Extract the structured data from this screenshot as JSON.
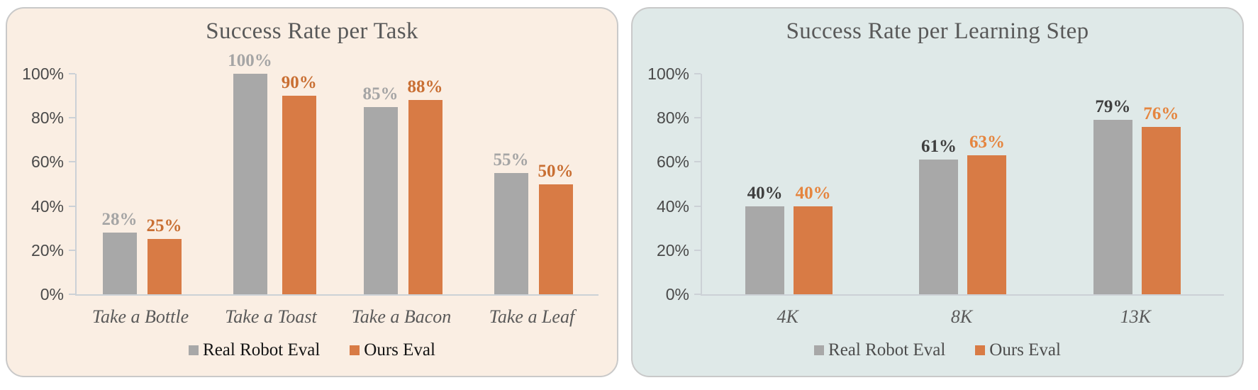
{
  "page": {
    "background": "#ffffff"
  },
  "chart_data": [
    {
      "type": "bar",
      "title": "Success Rate per Task",
      "title_color": "#595959",
      "panel_background": "#faeee3",
      "panel_border_color": "#c9c9c9",
      "axis_color": "#ccd1d6",
      "ytick_label_color": "#4a4a4a",
      "category_label_color": "#595959",
      "legend_text_color": "#141414",
      "categories": [
        "Take a Bottle",
        "Take a Toast",
        "Take a Bacon",
        "Take a Leaf"
      ],
      "series": [
        {
          "name": "Real Robot Eval",
          "color": "#a8a8a8",
          "label_color": "#a5a5a5",
          "values": [
            28,
            100,
            85,
            55
          ]
        },
        {
          "name": "Ours Eval",
          "color": "#d87b45",
          "label_color": "#c96f33",
          "values": [
            25,
            90,
            88,
            50
          ]
        }
      ],
      "value_suffix": "%",
      "yticks": [
        "0%",
        "20%",
        "40%",
        "60%",
        "80%",
        "100%"
      ],
      "ylim": [
        0,
        100
      ],
      "grid": false,
      "legend_position": "bottom"
    },
    {
      "type": "bar",
      "title": "Success Rate per Learning Step",
      "title_color": "#595959",
      "panel_background": "#dfe9e8",
      "panel_border_color": "#c9c9c9",
      "axis_color": "#ccd1d6",
      "ytick_label_color": "#4a4a4a",
      "category_label_color": "#595959",
      "legend_text_color": "#4d4d4d",
      "categories": [
        "4K",
        "8K",
        "13K"
      ],
      "series": [
        {
          "name": "Real Robot Eval",
          "color": "#a8a8a8",
          "label_color": "#3f3f3f",
          "values": [
            40,
            61,
            79
          ]
        },
        {
          "name": "Ours Eval",
          "color": "#d87b45",
          "label_color": "#e5853f",
          "values": [
            40,
            63,
            76
          ]
        }
      ],
      "value_suffix": "%",
      "yticks": [
        "0%",
        "20%",
        "40%",
        "60%",
        "80%",
        "100%"
      ],
      "ylim": [
        0,
        100
      ],
      "grid": false,
      "legend_position": "bottom"
    }
  ]
}
